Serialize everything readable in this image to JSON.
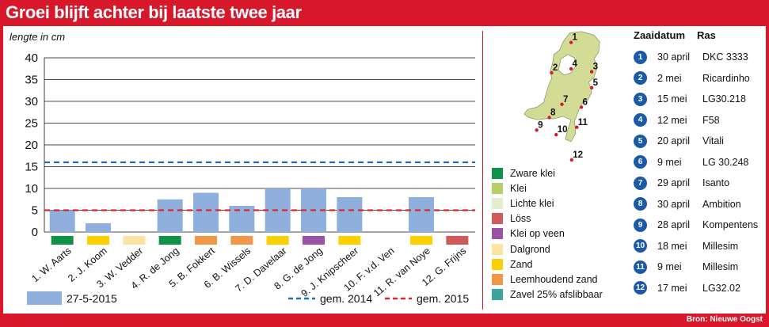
{
  "title": "Groei blijft achter bij laatste twee jaar",
  "source": "Bron: Nieuwe Oogst",
  "chart_data": {
    "type": "bar",
    "ylabel": "lengte in cm",
    "ylim": [
      0,
      40
    ],
    "yticks": [
      0,
      5,
      10,
      15,
      20,
      25,
      30,
      35,
      40
    ],
    "grid": true,
    "categories": [
      "1. W. Aarts",
      "2. J. Koom",
      "3. W. Vedder",
      "4. R. de Jong",
      "5. B. Fokkert",
      "6. B. Wissels",
      "7. D. Davelaar",
      "8. G. de Jong",
      "9. J. Knipscheer",
      "10. F. v.d. Ven",
      "11. R. van Noye",
      "12. G. Frijns"
    ],
    "series": [
      {
        "name": "27-5-2015",
        "values": [
          5,
          2,
          0,
          7.5,
          9,
          6,
          10,
          10,
          8,
          0,
          8,
          0
        ],
        "color": "#8fb0dd"
      }
    ],
    "reference_lines": [
      {
        "name": "gem. 2014",
        "value": 16,
        "color": "#1f6fb5",
        "style": "dashed"
      },
      {
        "name": "gem. 2015",
        "value": 5,
        "color": "#e0232b",
        "style": "dashed"
      }
    ],
    "soil_per_category": [
      "Zware klei",
      "Zand",
      "Dalgrond",
      "Zware klei",
      "Leemhoudend zand",
      "Leemhoudend zand",
      "Zand",
      "Klei op veen",
      "Zand",
      "",
      "Zand",
      "Löss"
    ],
    "legend_placement": "bottom"
  },
  "soil_legend": [
    {
      "label": "Zware klei",
      "color": "#0e9149"
    },
    {
      "label": "Klei",
      "color": "#b7cf66"
    },
    {
      "label": "Lichte klei",
      "color": "#e3efcc"
    },
    {
      "label": "Löss",
      "color": "#cf5a5a"
    },
    {
      "label": "Klei op veen",
      "color": "#9a52a2"
    },
    {
      "label": "Dalgrond",
      "color": "#fbe3a0"
    },
    {
      "label": "Zand",
      "color": "#fcd000"
    },
    {
      "label": "Leemhoudend zand",
      "color": "#f0974a"
    },
    {
      "label": "Zavel 25% afslibbaar",
      "color": "#3aa69b"
    }
  ],
  "table": {
    "header_date": "Zaaidatum",
    "header_ras": "Ras",
    "rows": [
      {
        "num": "1",
        "date": "30 april",
        "ras": "DKC 3333"
      },
      {
        "num": "2",
        "date": "2 mei",
        "ras": "Ricardinho"
      },
      {
        "num": "3",
        "date": "15 mei",
        "ras": "LG30.218"
      },
      {
        "num": "4",
        "date": "12 mei",
        "ras": "F58"
      },
      {
        "num": "5",
        "date": "20 april",
        "ras": "Vitali"
      },
      {
        "num": "6",
        "date": "9 mei",
        "ras": "LG 30.248"
      },
      {
        "num": "7",
        "date": "29 april",
        "ras": "Isanto"
      },
      {
        "num": "8",
        "date": "30 april",
        "ras": "Ambition"
      },
      {
        "num": "9",
        "date": "28 april",
        "ras": "Kompentens"
      },
      {
        "num": "10",
        "date": "18 mei",
        "ras": "Millesim"
      },
      {
        "num": "11",
        "date": "9 mei",
        "ras": "Millesim"
      },
      {
        "num": "12",
        "date": "17 mei",
        "ras": "LG32.02"
      }
    ]
  },
  "map": {
    "fill": "#d2dc95",
    "stroke": "#8a9163",
    "markers": [
      {
        "label": "1"
      },
      {
        "label": "2"
      },
      {
        "label": "3"
      },
      {
        "label": "4"
      },
      {
        "label": "5"
      },
      {
        "label": "6"
      },
      {
        "label": "7"
      },
      {
        "label": "8"
      },
      {
        "label": "9"
      },
      {
        "label": "10"
      },
      {
        "label": "11"
      },
      {
        "label": "12"
      }
    ]
  }
}
